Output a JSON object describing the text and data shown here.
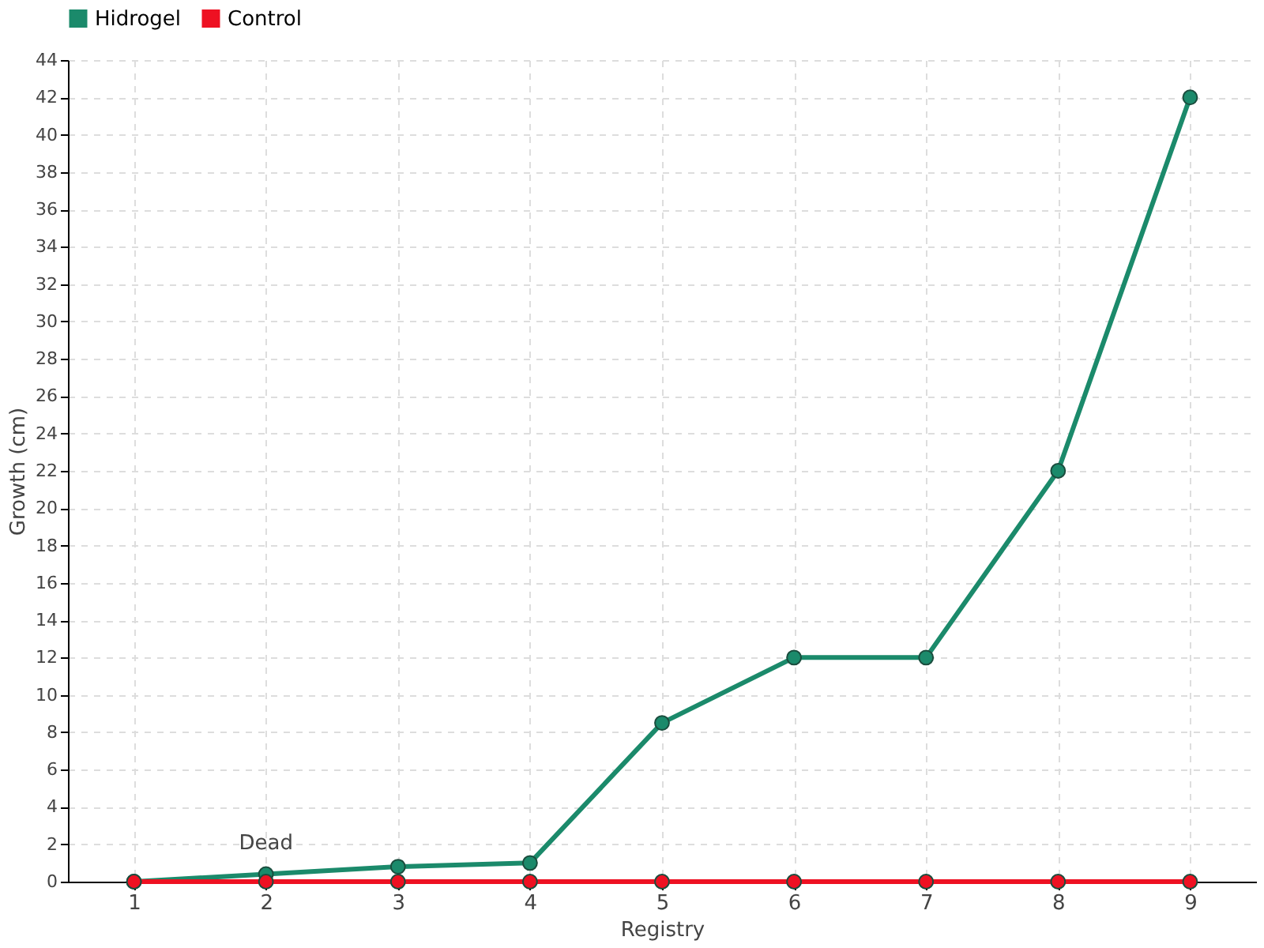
{
  "chart_data": {
    "type": "line",
    "xlabel": "Registry",
    "ylabel": "Growth (cm)",
    "categories": [
      "1",
      "2",
      "3",
      "4",
      "5",
      "6",
      "7",
      "8",
      "9"
    ],
    "series": [
      {
        "name": "Hidrogel",
        "color": "#1b8a6b",
        "values": [
          0,
          0.4,
          0.8,
          1,
          8.5,
          12,
          12,
          22,
          42
        ]
      },
      {
        "name": "Control",
        "color": "#ee1122",
        "values": [
          0,
          0,
          0,
          0,
          0,
          0,
          0,
          0,
          0
        ]
      }
    ],
    "ylim": [
      0,
      44
    ],
    "yticks": [
      0,
      2,
      4,
      6,
      8,
      10,
      12,
      14,
      16,
      18,
      20,
      22,
      24,
      26,
      28,
      30,
      32,
      34,
      36,
      38,
      40,
      42,
      44
    ],
    "annotations": [
      {
        "text": "Dead",
        "x": "2",
        "y": 0.4
      }
    ],
    "grid": true,
    "legend": "top left",
    "marker": "circle",
    "line_style": "solid"
  }
}
